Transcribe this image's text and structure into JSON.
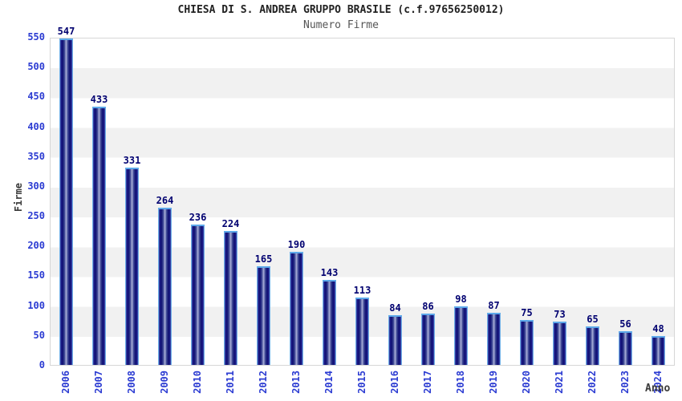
{
  "chart_data": {
    "type": "bar",
    "title": "CHIESA DI S. ANDREA GRUPPO BRASILE (c.f.97656250012)",
    "subtitle": "Numero Firme",
    "xlabel": "Anno",
    "ylabel": "Firme",
    "categories": [
      "2006",
      "2007",
      "2008",
      "2009",
      "2010",
      "2011",
      "2012",
      "2013",
      "2014",
      "2015",
      "2016",
      "2017",
      "2018",
      "2019",
      "2020",
      "2021",
      "2022",
      "2023",
      "2024"
    ],
    "values": [
      547,
      433,
      331,
      264,
      236,
      224,
      165,
      190,
      143,
      113,
      84,
      86,
      98,
      87,
      75,
      73,
      65,
      56,
      48
    ],
    "ylim": [
      0,
      550
    ],
    "yticks": [
      0,
      50,
      100,
      150,
      200,
      250,
      300,
      350,
      400,
      450,
      500,
      550
    ],
    "grid": "horizontal alternating bands every 50 units, white and light gray",
    "legend": "none",
    "bar_value_labels": true,
    "colors": {
      "tick_label": "#2b3bd2",
      "value_label": "#000070",
      "title": "#222222",
      "subtitle": "#555555",
      "axis_title": "#3a3a3a",
      "band_white": "#ffffff",
      "band_gray": "#f1f1f1",
      "plot_border": "#d6d6d6",
      "bar_dark": "#0f0f72",
      "bar_center_light": "#aab0d8",
      "bar_cap": "#5ca8ea",
      "bar_edge": "#6fb0e8"
    }
  }
}
